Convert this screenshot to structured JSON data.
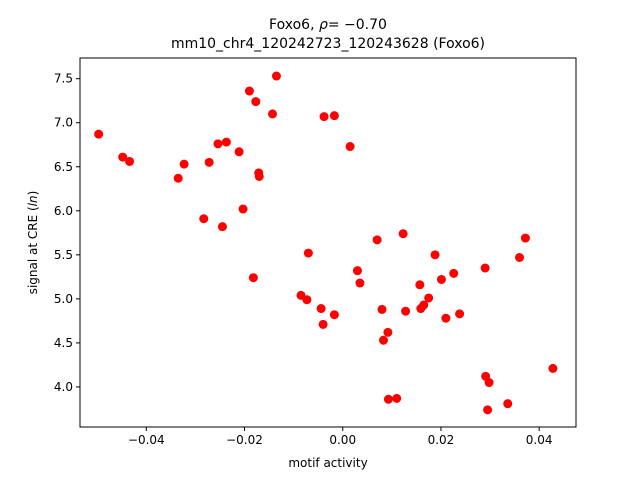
{
  "chart_data": {
    "type": "scatter",
    "title_line1": "Foxo6, ",
    "title_rho_symbol": "ρ",
    "title_rho_value": "= −0.70",
    "title_line2": "mm10_chr4_120242723_120243628 (Foxo6)",
    "xlabel": "motif activity",
    "ylabel_prefix": "signal at CRE (",
    "ylabel_italic": "ln",
    "ylabel_suffix": ")",
    "xlim": [
      -0.0535,
      0.0475
    ],
    "ylim": [
      3.545,
      7.735
    ],
    "xticks": [
      -0.04,
      -0.02,
      0.0,
      0.02,
      0.04
    ],
    "xtick_labels": [
      "−0.04",
      "−0.02",
      "0.00",
      "0.02",
      "0.04"
    ],
    "yticks": [
      4.0,
      4.5,
      5.0,
      5.5,
      6.0,
      6.5,
      7.0,
      7.5
    ],
    "ytick_labels": [
      "4.0",
      "4.5",
      "5.0",
      "5.5",
      "6.0",
      "6.5",
      "7.0",
      "7.5"
    ],
    "grid": false,
    "marker_color": "#ff0000",
    "points": [
      {
        "x": -0.0497,
        "y": 6.87
      },
      {
        "x": -0.0448,
        "y": 6.61
      },
      {
        "x": -0.0434,
        "y": 6.56
      },
      {
        "x": -0.0335,
        "y": 6.37
      },
      {
        "x": -0.0323,
        "y": 6.53
      },
      {
        "x": -0.0283,
        "y": 5.91
      },
      {
        "x": -0.0272,
        "y": 6.55
      },
      {
        "x": -0.0254,
        "y": 6.76
      },
      {
        "x": -0.0245,
        "y": 5.82
      },
      {
        "x": -0.0237,
        "y": 6.78
      },
      {
        "x": -0.0211,
        "y": 6.67
      },
      {
        "x": -0.0203,
        "y": 6.02
      },
      {
        "x": -0.019,
        "y": 7.36
      },
      {
        "x": -0.0182,
        "y": 5.24
      },
      {
        "x": -0.0177,
        "y": 7.24
      },
      {
        "x": -0.0171,
        "y": 6.43
      },
      {
        "x": -0.017,
        "y": 6.39
      },
      {
        "x": -0.0143,
        "y": 7.1
      },
      {
        "x": -0.0135,
        "y": 7.53
      },
      {
        "x": -0.0085,
        "y": 5.04
      },
      {
        "x": -0.0073,
        "y": 4.99
      },
      {
        "x": -0.007,
        "y": 5.52
      },
      {
        "x": -0.0044,
        "y": 4.89
      },
      {
        "x": -0.004,
        "y": 4.71
      },
      {
        "x": -0.0038,
        "y": 7.07
      },
      {
        "x": -0.0017,
        "y": 7.08
      },
      {
        "x": -0.0017,
        "y": 4.82
      },
      {
        "x": 0.0015,
        "y": 6.73
      },
      {
        "x": 0.003,
        "y": 5.32
      },
      {
        "x": 0.0035,
        "y": 5.18
      },
      {
        "x": 0.007,
        "y": 5.67
      },
      {
        "x": 0.008,
        "y": 4.88
      },
      {
        "x": 0.0083,
        "y": 4.53
      },
      {
        "x": 0.0092,
        "y": 4.62
      },
      {
        "x": 0.0093,
        "y": 3.86
      },
      {
        "x": 0.011,
        "y": 3.87
      },
      {
        "x": 0.0123,
        "y": 5.74
      },
      {
        "x": 0.0128,
        "y": 4.86
      },
      {
        "x": 0.0157,
        "y": 5.16
      },
      {
        "x": 0.0159,
        "y": 4.89
      },
      {
        "x": 0.0165,
        "y": 4.93
      },
      {
        "x": 0.0175,
        "y": 5.01
      },
      {
        "x": 0.0188,
        "y": 5.5
      },
      {
        "x": 0.0201,
        "y": 5.22
      },
      {
        "x": 0.021,
        "y": 4.78
      },
      {
        "x": 0.0226,
        "y": 5.29
      },
      {
        "x": 0.0238,
        "y": 4.83
      },
      {
        "x": 0.029,
        "y": 5.35
      },
      {
        "x": 0.0291,
        "y": 4.12
      },
      {
        "x": 0.0295,
        "y": 3.74
      },
      {
        "x": 0.0298,
        "y": 4.05
      },
      {
        "x": 0.0336,
        "y": 3.81
      },
      {
        "x": 0.036,
        "y": 5.47
      },
      {
        "x": 0.0372,
        "y": 5.69
      },
      {
        "x": 0.0428,
        "y": 4.21
      }
    ]
  }
}
